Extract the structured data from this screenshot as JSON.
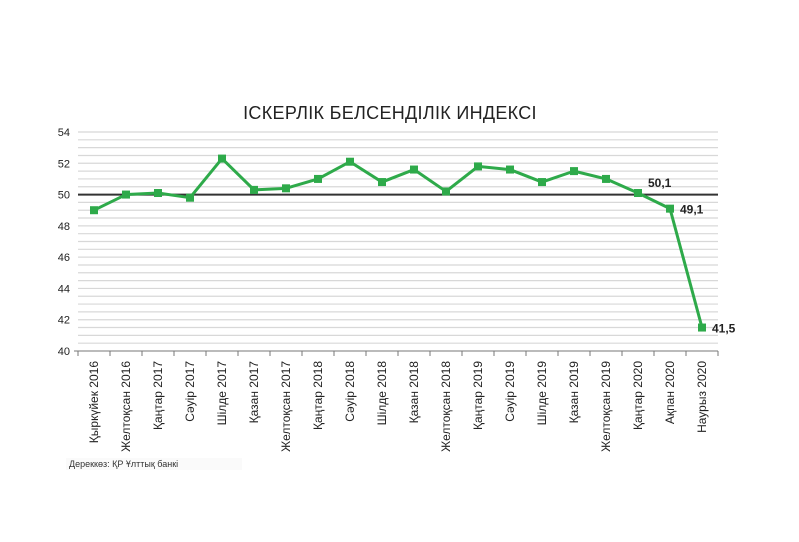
{
  "chart_data": {
    "type": "line",
    "title": "ІСКЕРЛІК БЕЛСЕНДІЛІК ИНДЕКСІ",
    "categories": [
      "Қыркүйек 2016",
      "Желтоқсан 2016",
      "Қаңтар 2017",
      "Сәуір 2017",
      "Шілде 2017",
      "Қазан 2017",
      "Желтоқсан 2017",
      "Қаңтар 2018",
      "Сәуір 2018",
      "Шілде 2018",
      "Қазан 2018",
      "Желтоқсан 2018",
      "Қаңтар 2019",
      "Сәуір 2019",
      "Шілде 2019",
      "Қазан 2019",
      "Желтоқсан 2019",
      "Қаңтар 2020",
      "Ақпан 2020",
      "Наурыз 2020"
    ],
    "values": [
      49.0,
      50.0,
      50.1,
      49.8,
      52.3,
      50.3,
      50.4,
      51.0,
      52.1,
      50.8,
      51.6,
      50.2,
      51.8,
      51.6,
      50.8,
      51.5,
      51.0,
      50.1,
      49.1,
      41.5
    ],
    "data_labels": [
      {
        "index": 17,
        "text": "50,1"
      },
      {
        "index": 18,
        "text": "49,1"
      },
      {
        "index": 19,
        "text": "41,5"
      }
    ],
    "ylim": [
      40,
      54
    ],
    "yticks": [
      40,
      42,
      44,
      46,
      48,
      50,
      52,
      54
    ],
    "reference_line": 50,
    "grid": true,
    "series_color": "#2eaa4a",
    "xlabel": "",
    "ylabel": ""
  },
  "source": "Дереккөз: ҚР Ұлттық банкі"
}
